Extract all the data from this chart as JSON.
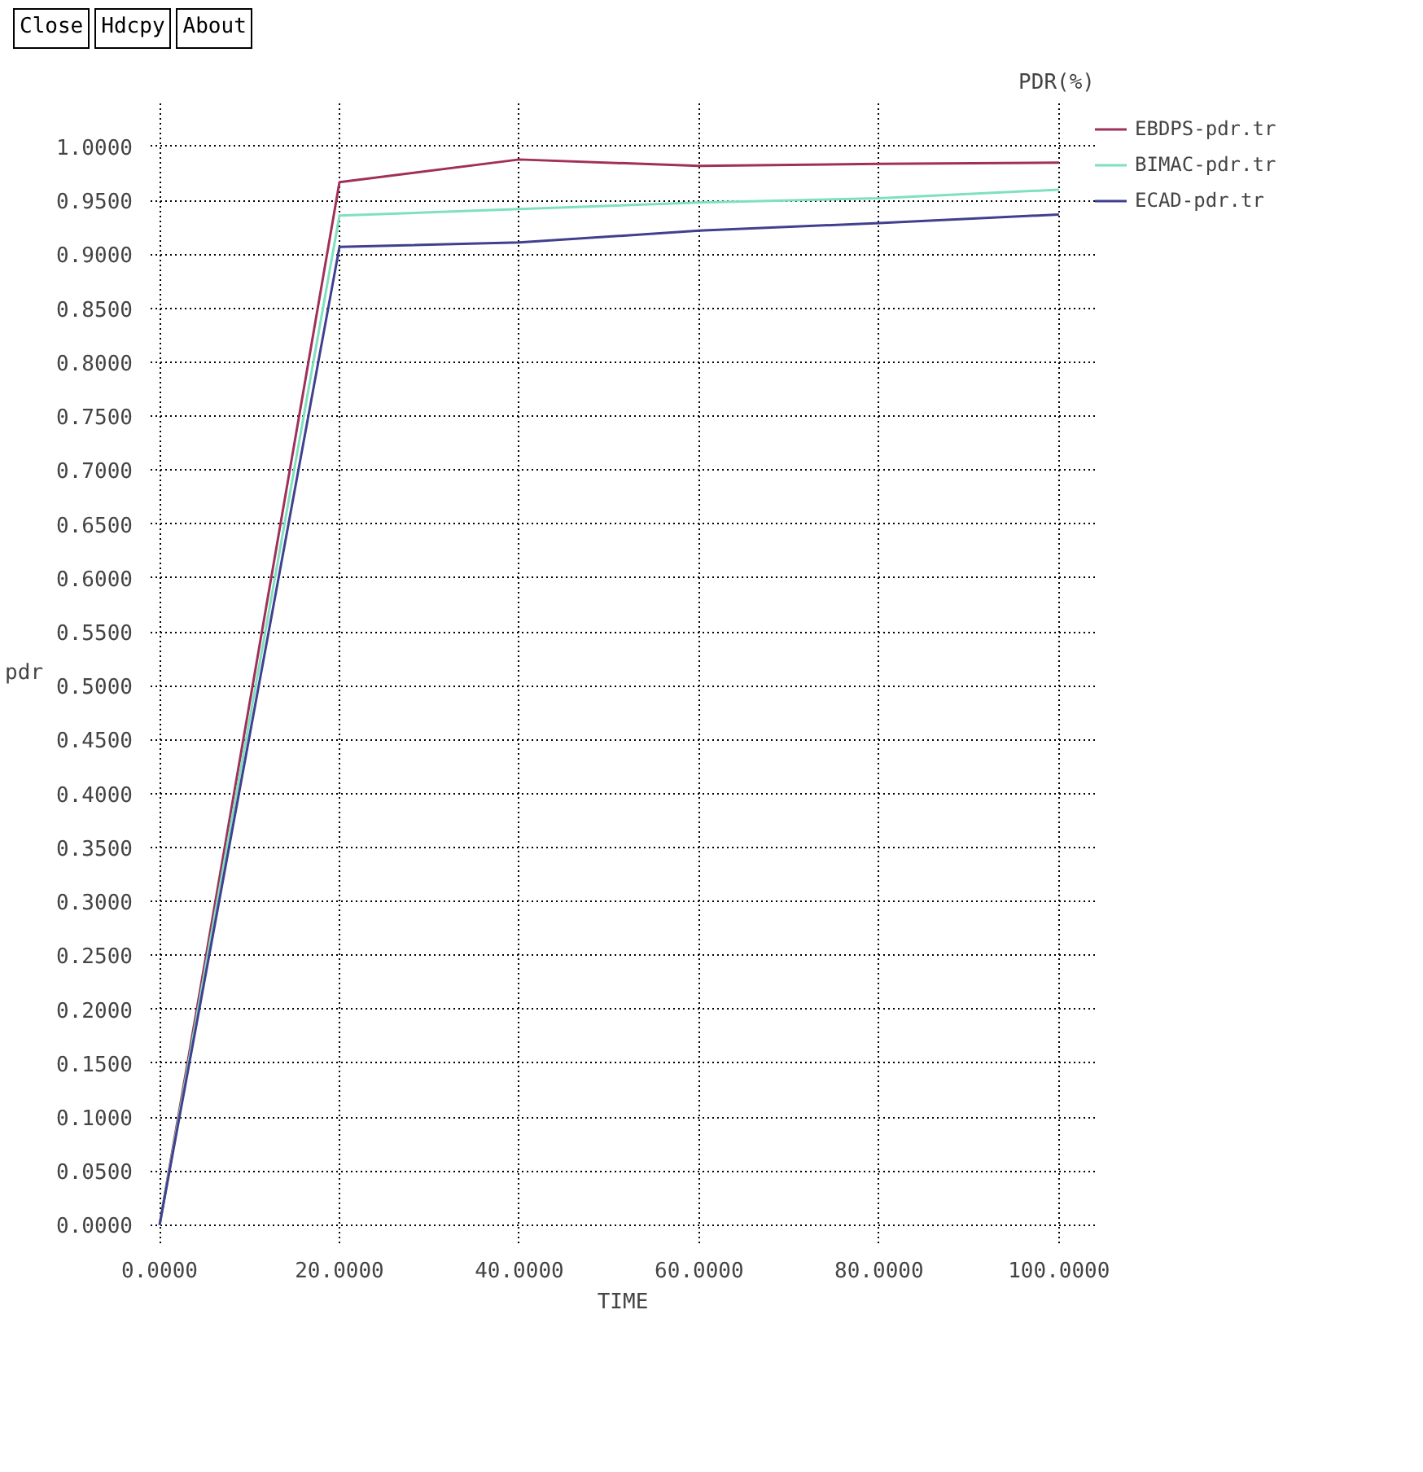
{
  "chart_data": {
    "type": "line",
    "title": "PDR(%)",
    "xlabel": "TIME",
    "ylabel": "pdr",
    "annotations": [
      "Close",
      "Hdcpy",
      "About"
    ],
    "x": [
      0,
      20,
      40,
      60,
      80,
      100
    ],
    "series": [
      {
        "name": "EBDPS-pdr.tr",
        "color": "#a0305a",
        "values": [
          0,
          0.967,
          0.988,
          0.982,
          0.984,
          0.985
        ]
      },
      {
        "name": "BIMAC-pdr.tr",
        "color": "#7fe0c0",
        "values": [
          0,
          0.936,
          0.942,
          0.948,
          0.952,
          0.96
        ]
      },
      {
        "name": "ECAD-pdr.tr",
        "color": "#40408f",
        "values": [
          0,
          0.907,
          0.911,
          0.922,
          0.929,
          0.937
        ]
      }
    ],
    "xlim": [
      -1,
      104
    ],
    "ylim": [
      -0.017,
      1.04
    ],
    "xticks": [
      {
        "value": 0,
        "label": "0.0000"
      },
      {
        "value": 20,
        "label": "20.0000"
      },
      {
        "value": 40,
        "label": "40.0000"
      },
      {
        "value": 60,
        "label": "60.0000"
      },
      {
        "value": 80,
        "label": "80.0000"
      },
      {
        "value": 100,
        "label": "100.0000"
      }
    ],
    "yticks": [
      {
        "value": 0,
        "label": "0.0000"
      },
      {
        "value": 0.05,
        "label": "0.0500"
      },
      {
        "value": 0.1,
        "label": "0.1000"
      },
      {
        "value": 0.15,
        "label": "0.1500"
      },
      {
        "value": 0.2,
        "label": "0.2000"
      },
      {
        "value": 0.25,
        "label": "0.2500"
      },
      {
        "value": 0.3,
        "label": "0.3000"
      },
      {
        "value": 0.35,
        "label": "0.3500"
      },
      {
        "value": 0.4,
        "label": "0.4000"
      },
      {
        "value": 0.45,
        "label": "0.4500"
      },
      {
        "value": 0.5,
        "label": "0.5000"
      },
      {
        "value": 0.55,
        "label": "0.5500"
      },
      {
        "value": 0.6,
        "label": "0.6000"
      },
      {
        "value": 0.65,
        "label": "0.6500"
      },
      {
        "value": 0.7,
        "label": "0.7000"
      },
      {
        "value": 0.75,
        "label": "0.7500"
      },
      {
        "value": 0.8,
        "label": "0.8000"
      },
      {
        "value": 0.85,
        "label": "0.8500"
      },
      {
        "value": 0.9,
        "label": "0.9000"
      },
      {
        "value": 0.95,
        "label": "0.9500"
      },
      {
        "value": 1.0,
        "label": "1.0000"
      }
    ],
    "grid": true,
    "legend": "top right",
    "marker": "none",
    "line_style": "solid"
  }
}
